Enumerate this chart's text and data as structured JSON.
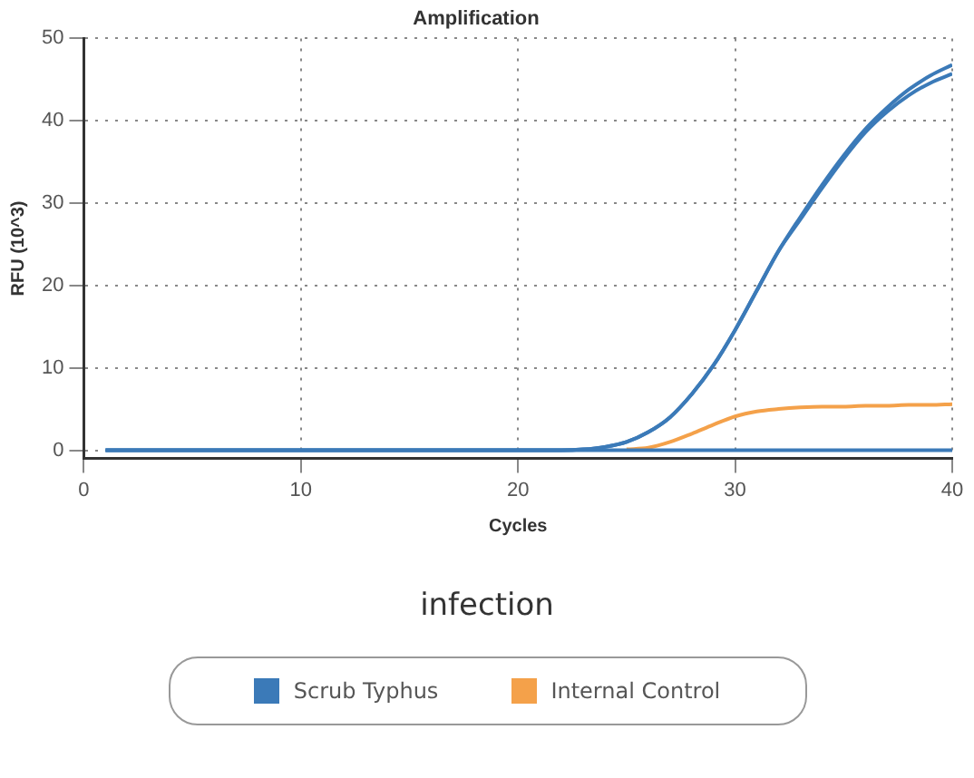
{
  "chart_data": {
    "type": "line",
    "title": "Amplification",
    "xlabel": "Cycles",
    "ylabel": "RFU (10^3)",
    "x": [
      1,
      2,
      3,
      4,
      5,
      6,
      7,
      8,
      9,
      10,
      11,
      12,
      13,
      14,
      15,
      16,
      17,
      18,
      19,
      20,
      21,
      22,
      23,
      24,
      25,
      26,
      27,
      28,
      29,
      30,
      31,
      32,
      33,
      34,
      35,
      36,
      37,
      38,
      39,
      40
    ],
    "series": [
      {
        "name": "Scrub Typhus",
        "color": "#3b7ab8",
        "values": [
          0,
          0,
          0,
          0,
          0,
          0,
          0,
          0,
          0,
          0,
          0,
          0,
          0,
          0,
          0,
          0,
          0,
          0,
          0,
          0,
          0,
          0,
          0.1,
          0.4,
          1.0,
          2.2,
          4.0,
          6.8,
          10.3,
          14.6,
          19.4,
          24.2,
          28.3,
          32.2,
          35.8,
          39.0,
          41.6,
          43.8,
          45.5,
          46.8
        ]
      },
      {
        "color": "#3b7ab8",
        "values": [
          0,
          0,
          0,
          0,
          0,
          0,
          0,
          0,
          0,
          0,
          0,
          0,
          0,
          0,
          0,
          0,
          0,
          0,
          0,
          0,
          0,
          0,
          0.1,
          0.4,
          1.0,
          2.2,
          4.0,
          6.8,
          10.3,
          14.6,
          19.4,
          24.2,
          28.0,
          31.8,
          35.4,
          38.6,
          41.1,
          43.1,
          44.6,
          45.7
        ]
      },
      {
        "color": "#3b7ab8",
        "values": [
          0,
          0,
          0,
          0,
          0,
          0,
          0,
          0,
          0,
          0,
          0,
          0,
          0,
          0,
          0,
          0,
          0,
          0,
          0,
          0,
          0,
          0,
          0,
          0,
          0,
          0,
          0,
          0,
          0,
          0,
          0,
          0,
          0,
          0,
          0,
          0,
          0,
          0,
          0,
          0
        ]
      },
      {
        "name": "Internal Control",
        "color": "#f4a14a",
        "values": [
          null,
          null,
          null,
          null,
          null,
          null,
          null,
          null,
          null,
          null,
          null,
          null,
          null,
          null,
          null,
          null,
          null,
          null,
          null,
          null,
          null,
          null,
          null,
          null,
          0.1,
          0.3,
          1.0,
          2.0,
          3.1,
          4.1,
          4.7,
          5.0,
          5.2,
          5.3,
          5.3,
          5.4,
          5.4,
          5.5,
          5.5,
          5.6
        ]
      }
    ],
    "xlim": [
      0,
      40
    ],
    "xticks": [
      0,
      10,
      20,
      30,
      40
    ],
    "ylim": [
      -1,
      50
    ],
    "yticks": [
      0,
      10,
      20,
      30,
      40,
      50
    ],
    "grid": true,
    "legend": "bottom",
    "marker": "none",
    "line_style": "solid",
    "annotations": [
      "infection"
    ]
  }
}
